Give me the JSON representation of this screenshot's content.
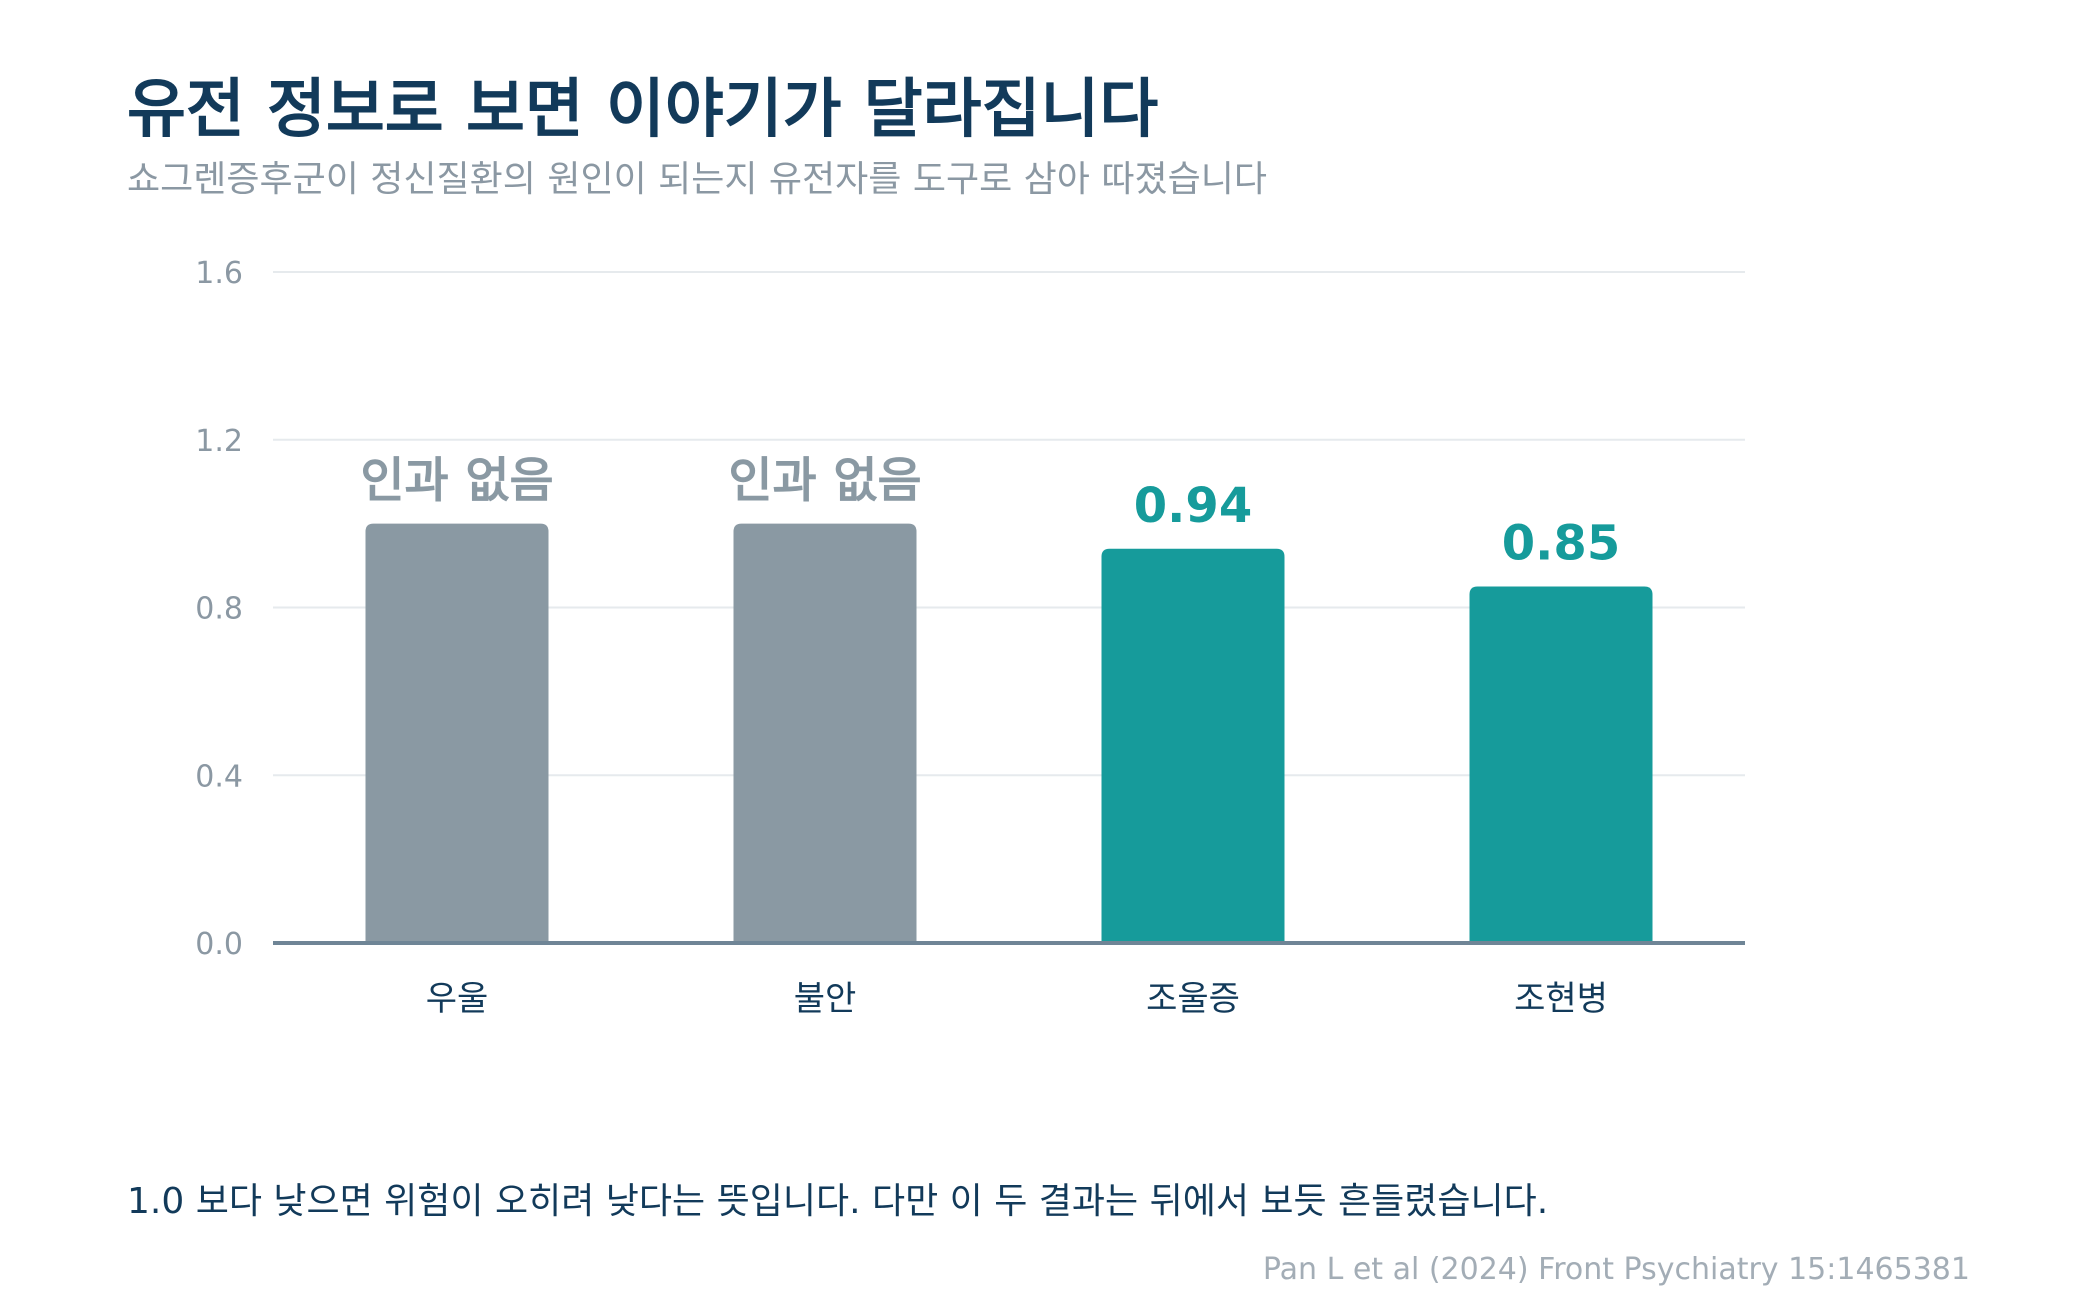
{
  "header": {
    "title": "유전 정보로 보면 이야기가 달라집니다",
    "subtitle": "쇼그렌증후군이 정신질환의 원인이 되는지 유전자를 도구로 삼아 따졌습니다"
  },
  "chart_data": {
    "type": "bar",
    "categories": [
      "우울",
      "불안",
      "조울증",
      "조현병"
    ],
    "values": [
      1.0,
      1.0,
      0.94,
      0.85
    ],
    "bar_labels": [
      "인과 없음",
      "인과 없음",
      "0.94",
      "0.85"
    ],
    "bar_colors": [
      "#8a99a3",
      "#8a99a3",
      "#169b9b",
      "#169b9b"
    ],
    "yticks": [
      "0.0",
      "0.4",
      "0.8",
      "1.2",
      "1.6"
    ],
    "ylim": [
      0,
      1.6
    ],
    "grid": true,
    "xlabel": "",
    "ylabel": ""
  },
  "footer": {
    "note": "1.0 보다 낮으면 위험이 오히려 낮다는 뜻입니다. 다만 이 두 결과는 뒤에서 보듯 흔들렸습니다.",
    "source": "Pan L et al (2024) Front Psychiatry 15:1465381"
  },
  "colors": {
    "title": "#123a5a",
    "subtitle": "#8b98a3",
    "gray_bar": "#8a99a3",
    "teal_bar": "#169b9b",
    "gridline": "#e6eaed",
    "axis": "#6f8596"
  }
}
